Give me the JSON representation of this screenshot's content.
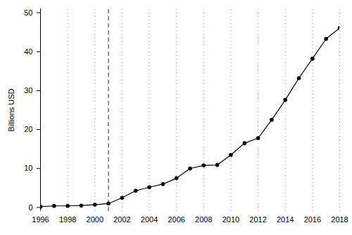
{
  "chart_data": {
    "type": "line",
    "y_label": "Billions USD",
    "x": [
      1996,
      1997,
      1998,
      1999,
      2000,
      2001,
      2002,
      2003,
      2004,
      2005,
      2006,
      2007,
      2008,
      2009,
      2010,
      2011,
      2012,
      2013,
      2014,
      2015,
      2016,
      2017,
      2018
    ],
    "values": [
      0.2,
      0.4,
      0.4,
      0.5,
      0.7,
      1.0,
      2.5,
      4.3,
      5.2,
      6.0,
      7.5,
      10.0,
      10.8,
      10.9,
      13.5,
      16.5,
      17.8,
      22.5,
      27.6,
      33.2,
      38.2,
      43.3,
      46.1
    ],
    "color": "#000000",
    "marker": "circle",
    "line_style": "solid",
    "reference_x": 2001,
    "xlim": [
      1996,
      2018
    ],
    "xticks": [
      1996,
      1998,
      2000,
      2002,
      2004,
      2006,
      2008,
      2010,
      2012,
      2014,
      2016,
      2018
    ],
    "ylim": [
      -1,
      51
    ],
    "yticks": [
      0,
      10,
      20,
      30,
      40,
      50
    ],
    "grid": true
  }
}
